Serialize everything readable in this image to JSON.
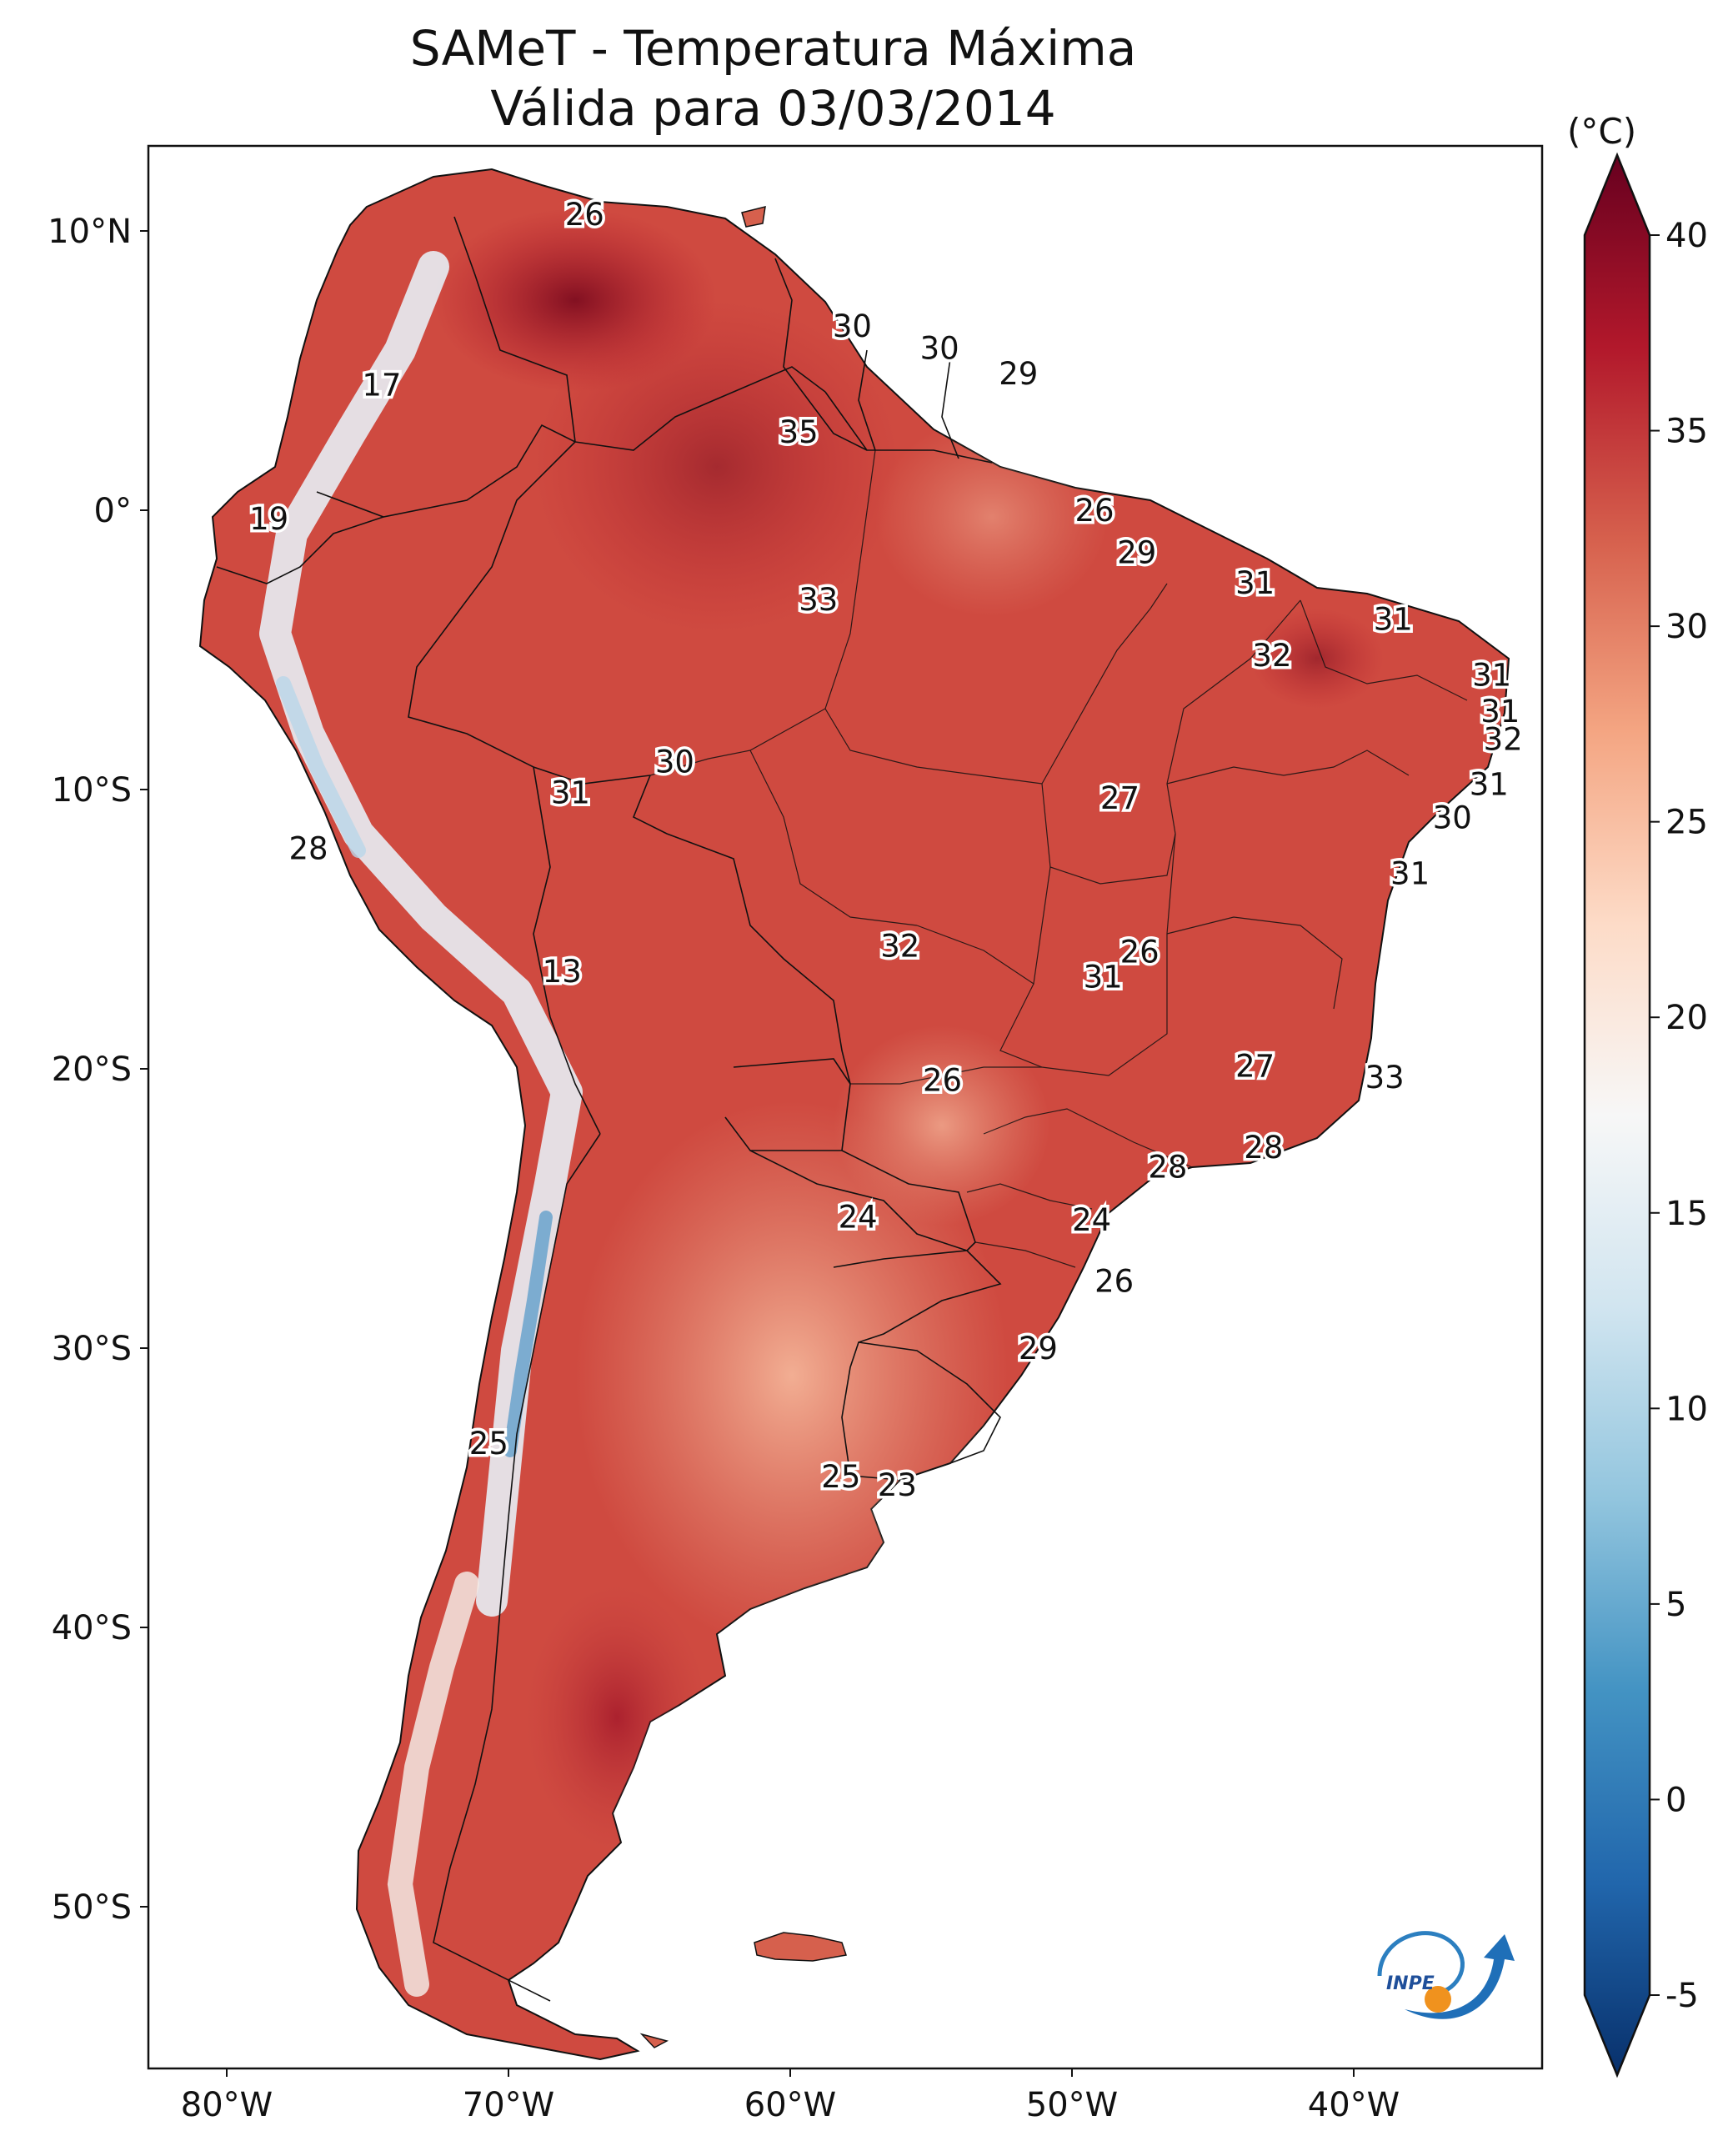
{
  "title": {
    "line1": "SAMeT - Temperatura Máxima",
    "line2": "Válida para 03/03/2014"
  },
  "map": {
    "lat_ticks": [
      "10°N",
      "0°",
      "10°S",
      "20°S",
      "30°S",
      "40°S",
      "50°S"
    ],
    "lon_ticks": [
      "80°W",
      "70°W",
      "60°W",
      "50°W",
      "40°W"
    ],
    "point_values": [
      {
        "lon": -67.3,
        "lat": 10.6,
        "label": "26"
      },
      {
        "lon": -74.5,
        "lat": 4.5,
        "label": "17"
      },
      {
        "lon": -57.8,
        "lat": 6.6,
        "label": "30"
      },
      {
        "lon": -54.7,
        "lat": 5.8,
        "label": "30"
      },
      {
        "lon": -51.9,
        "lat": 4.9,
        "label": "29"
      },
      {
        "lon": -59.7,
        "lat": 2.8,
        "label": "35"
      },
      {
        "lon": -78.5,
        "lat": -0.3,
        "label": "19"
      },
      {
        "lon": -49.2,
        "lat": 0.0,
        "label": "26"
      },
      {
        "lon": -47.7,
        "lat": -1.5,
        "label": "29"
      },
      {
        "lon": -43.5,
        "lat": -2.6,
        "label": "31"
      },
      {
        "lon": -59.0,
        "lat": -3.2,
        "label": "33"
      },
      {
        "lon": -38.6,
        "lat": -3.9,
        "label": "31"
      },
      {
        "lon": -42.9,
        "lat": -5.2,
        "label": "32"
      },
      {
        "lon": -35.1,
        "lat": -5.9,
        "label": "31"
      },
      {
        "lon": -34.8,
        "lat": -7.2,
        "label": "31"
      },
      {
        "lon": -34.7,
        "lat": -8.2,
        "label": "32"
      },
      {
        "lon": -64.1,
        "lat": -9.0,
        "label": "30"
      },
      {
        "lon": -35.2,
        "lat": -9.8,
        "label": "31"
      },
      {
        "lon": -67.8,
        "lat": -10.1,
        "label": "31"
      },
      {
        "lon": -48.3,
        "lat": -10.3,
        "label": "27"
      },
      {
        "lon": -36.5,
        "lat": -11.0,
        "label": "30"
      },
      {
        "lon": -77.1,
        "lat": -12.1,
        "label": "28"
      },
      {
        "lon": -38.0,
        "lat": -13.0,
        "label": "31"
      },
      {
        "lon": -56.1,
        "lat": -15.6,
        "label": "32"
      },
      {
        "lon": -47.6,
        "lat": -15.8,
        "label": "26"
      },
      {
        "lon": -48.9,
        "lat": -16.7,
        "label": "31"
      },
      {
        "lon": -68.1,
        "lat": -16.5,
        "label": "13"
      },
      {
        "lon": -43.5,
        "lat": -19.9,
        "label": "27"
      },
      {
        "lon": -38.9,
        "lat": -20.3,
        "label": "33"
      },
      {
        "lon": -54.6,
        "lat": -20.4,
        "label": "26"
      },
      {
        "lon": -43.2,
        "lat": -22.8,
        "label": "28"
      },
      {
        "lon": -46.6,
        "lat": -23.5,
        "label": "28"
      },
      {
        "lon": -57.6,
        "lat": -25.3,
        "label": "24"
      },
      {
        "lon": -49.3,
        "lat": -25.4,
        "label": "24"
      },
      {
        "lon": -48.5,
        "lat": -27.6,
        "label": "26"
      },
      {
        "lon": -51.2,
        "lat": -30.0,
        "label": "29"
      },
      {
        "lon": -70.7,
        "lat": -33.4,
        "label": "25"
      },
      {
        "lon": -58.2,
        "lat": -34.6,
        "label": "25"
      },
      {
        "lon": -56.2,
        "lat": -34.9,
        "label": "23"
      }
    ]
  },
  "colorbar": {
    "unit": "(°C)",
    "ticks": [
      "40",
      "35",
      "30",
      "25",
      "20",
      "15",
      "10",
      "5",
      "0",
      "-5"
    ],
    "range": [
      -5,
      40
    ],
    "colors": [
      "#08306b",
      "#2166ac",
      "#4393c3",
      "#92c5de",
      "#d1e5f0",
      "#f7f7f7",
      "#fddbc7",
      "#f4a582",
      "#d6604d",
      "#b2182b",
      "#67001f"
    ]
  },
  "logo": {
    "text": "INPE"
  }
}
